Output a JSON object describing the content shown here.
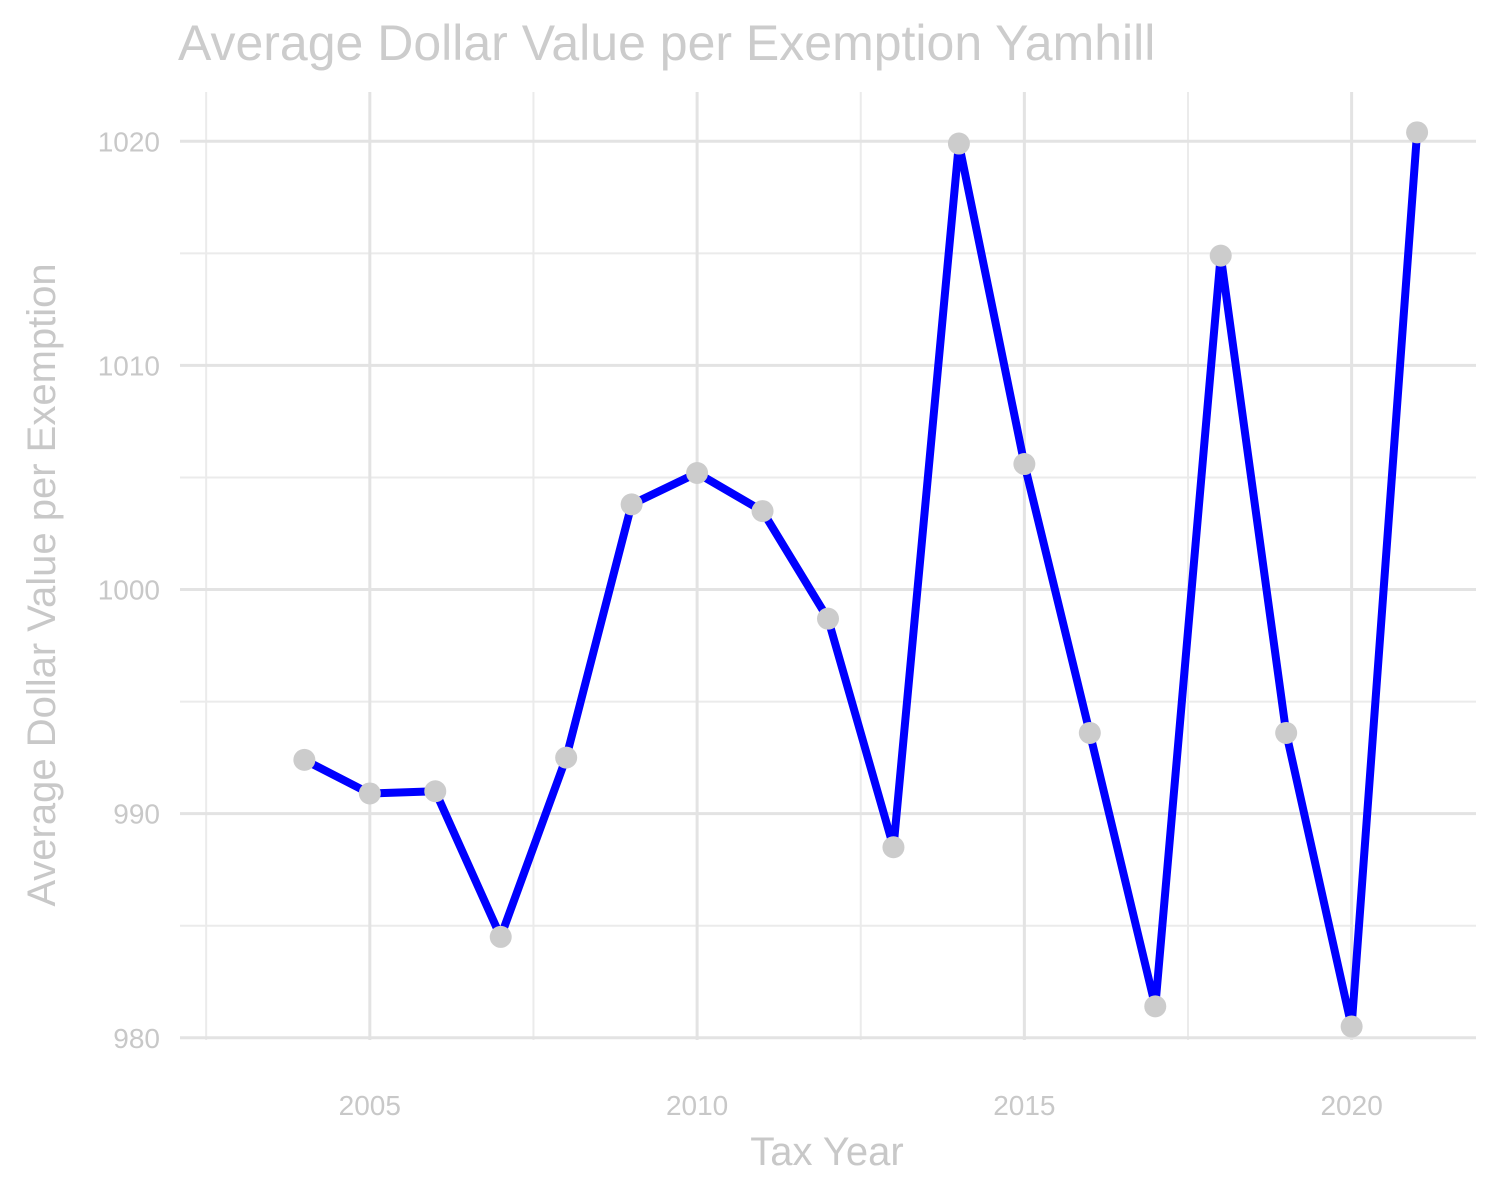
{
  "chart_data": {
    "type": "line",
    "title": "Average Dollar Value per Exemption Yamhill",
    "xlabel": "Tax Year",
    "ylabel": "Average Dollar Value per Exemption",
    "x": [
      2004,
      2005,
      2006,
      2007,
      2008,
      2009,
      2010,
      2011,
      2012,
      2013,
      2014,
      2015,
      2016,
      2017,
      2018,
      2019,
      2020,
      2021
    ],
    "values": [
      992.4,
      990.9,
      991.0,
      984.5,
      992.5,
      1003.8,
      1005.2,
      1003.5,
      998.7,
      988.5,
      1019.9,
      1005.6,
      993.6,
      981.4,
      1014.9,
      993.6,
      980.5,
      1020.4
    ],
    "xlim": [
      2002.1,
      2021.9
    ],
    "ylim": [
      979.9,
      1022.2
    ],
    "x_ticks": [
      "2005",
      "2010",
      "2015",
      "2020"
    ],
    "y_ticks": [
      "980",
      "990",
      "1000",
      "1010",
      "1020"
    ],
    "grid": true,
    "line_color": "#0000ff",
    "point_color": "#cccccc",
    "text_color": "#cccccc"
  }
}
